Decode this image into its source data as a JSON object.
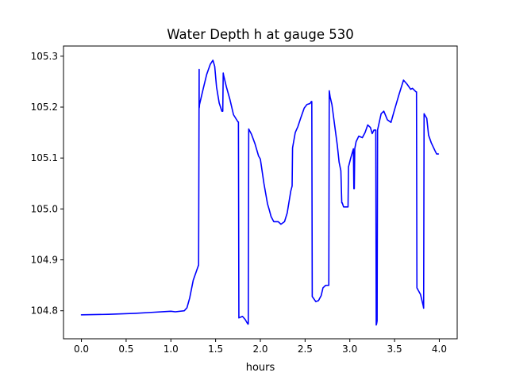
{
  "chart_data": {
    "type": "line",
    "title": "Water Depth h at gauge 530",
    "xlabel": "hours",
    "ylabel": "",
    "xlim": [
      -0.2,
      4.2
    ],
    "ylim": [
      104.745,
      105.32
    ],
    "x_ticks": [
      0.0,
      0.5,
      1.0,
      1.5,
      2.0,
      2.5,
      3.0,
      3.5,
      4.0
    ],
    "x_tick_labels": [
      "0.0",
      "0.5",
      "1.0",
      "1.5",
      "2.0",
      "2.5",
      "3.0",
      "3.5",
      "4.0"
    ],
    "y_ticks": [
      104.8,
      104.9,
      105.0,
      105.1,
      105.2,
      105.3
    ],
    "y_tick_labels": [
      "104.8",
      "104.9",
      "105.0",
      "105.1",
      "105.2",
      "105.3"
    ],
    "grid": false,
    "legend": null,
    "series": [
      {
        "color": "#0000ff",
        "x": [
          0.0,
          0.3,
          0.6,
          0.8,
          1.0,
          1.05,
          1.15,
          1.18,
          1.21,
          1.25,
          1.29,
          1.31,
          1.316,
          1.316,
          1.318,
          1.32,
          1.36,
          1.4,
          1.44,
          1.47,
          1.49,
          1.51,
          1.54,
          1.57,
          1.58,
          1.585,
          1.59,
          1.62,
          1.66,
          1.7,
          1.75,
          1.755,
          1.76,
          1.8,
          1.83,
          1.86,
          1.865,
          1.87,
          1.9,
          1.94,
          1.98,
          2.0,
          2.01,
          2.04,
          2.08,
          2.1,
          2.12,
          2.15,
          2.18,
          2.2,
          2.23,
          2.27,
          2.3,
          2.34,
          2.355,
          2.36,
          2.39,
          2.42,
          2.45,
          2.49,
          2.52,
          2.555,
          2.57,
          2.575,
          2.58,
          2.62,
          2.65,
          2.68,
          2.7,
          2.73,
          2.755,
          2.765,
          2.77,
          2.78,
          2.8,
          2.83,
          2.86,
          2.88,
          2.9,
          2.91,
          2.915,
          2.93,
          2.96,
          2.98,
          2.985,
          2.99,
          3.01,
          3.04,
          3.045,
          3.05,
          3.055,
          3.07,
          3.1,
          3.14,
          3.17,
          3.2,
          3.23,
          3.25,
          3.27,
          3.29,
          3.295,
          3.3,
          3.305,
          3.31,
          3.35,
          3.38,
          3.42,
          3.46,
          3.5,
          3.55,
          3.6,
          3.64,
          3.68,
          3.7,
          3.74,
          3.745,
          3.75,
          3.79,
          3.82,
          3.825,
          3.83,
          3.86,
          3.88,
          3.91,
          3.95,
          3.97,
          3.99
        ],
        "y": [
          104.792,
          104.793,
          104.795,
          104.797,
          104.799,
          104.798,
          104.8,
          104.806,
          104.825,
          104.86,
          104.88,
          104.89,
          105.274,
          105.198,
          105.2,
          105.205,
          105.235,
          105.264,
          105.284,
          105.292,
          105.28,
          105.24,
          105.208,
          105.192,
          105.192,
          105.267,
          105.262,
          105.24,
          105.215,
          105.185,
          105.171,
          105.171,
          104.786,
          104.789,
          104.783,
          104.774,
          104.774,
          105.157,
          105.147,
          105.128,
          105.104,
          105.098,
          105.086,
          105.05,
          105.01,
          104.998,
          104.985,
          104.975,
          104.975,
          104.975,
          104.97,
          104.975,
          104.992,
          105.035,
          105.045,
          105.12,
          105.15,
          105.162,
          105.178,
          105.198,
          105.205,
          105.207,
          105.211,
          105.211,
          104.828,
          104.818,
          104.82,
          104.83,
          104.845,
          104.85,
          104.85,
          104.85,
          105.232,
          105.22,
          105.205,
          105.165,
          105.125,
          105.092,
          105.075,
          105.012,
          105.012,
          105.004,
          105.004,
          105.004,
          105.083,
          105.086,
          105.1,
          105.118,
          105.04,
          105.04,
          105.118,
          105.132,
          105.143,
          105.14,
          105.15,
          105.165,
          105.16,
          105.148,
          105.155,
          105.155,
          104.772,
          104.775,
          104.78,
          105.155,
          105.187,
          105.192,
          105.175,
          105.17,
          105.195,
          105.225,
          105.253,
          105.245,
          105.235,
          105.237,
          105.23,
          105.23,
          104.845,
          104.832,
          104.81,
          104.805,
          105.187,
          105.178,
          105.145,
          105.13,
          105.115,
          105.108,
          105.108
        ]
      }
    ]
  }
}
